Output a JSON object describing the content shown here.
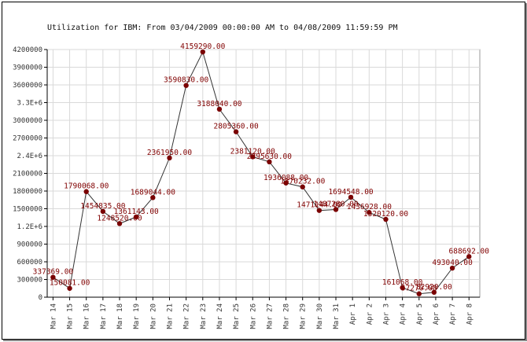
{
  "chart_data": {
    "type": "line",
    "title": "Utilization for IBM:  From 03/04/2009 00:00:00 AM to 04/08/2009 11:59:59 PM",
    "xlabel": "",
    "ylabel": "",
    "ylim": [
      0,
      4200000
    ],
    "grid": true,
    "legend": "none",
    "y_ticks": [
      {
        "value": 0,
        "label": "0"
      },
      {
        "value": 300000,
        "label": "300000"
      },
      {
        "value": 600000,
        "label": "600000"
      },
      {
        "value": 900000,
        "label": "900000"
      },
      {
        "value": 1200000,
        "label": "1.2E+6"
      },
      {
        "value": 1500000,
        "label": "1500000"
      },
      {
        "value": 1800000,
        "label": "1800000"
      },
      {
        "value": 2100000,
        "label": "2100000"
      },
      {
        "value": 2400000,
        "label": "2.4E+6"
      },
      {
        "value": 2700000,
        "label": "2700000"
      },
      {
        "value": 3000000,
        "label": "3000000"
      },
      {
        "value": 3300000,
        "label": "3.3E+6"
      },
      {
        "value": 3600000,
        "label": "3600000"
      },
      {
        "value": 3900000,
        "label": "3900000"
      },
      {
        "value": 4200000,
        "label": "4200000"
      }
    ],
    "categories": [
      "Mar 14",
      "Mar 15",
      "Mar 16",
      "Mar 17",
      "Mar 18",
      "Mar 19",
      "Mar 20",
      "Mar 21",
      "Mar 22",
      "Mar 23",
      "Mar 24",
      "Mar 25",
      "Mar 26",
      "Mar 27",
      "Mar 28",
      "Mar 29",
      "Mar 30",
      "Mar 31",
      "Apr 1",
      "Apr 2",
      "Apr 3",
      "Apr 4",
      "Apr 5",
      "Apr 6",
      "Apr 7",
      "Apr 8"
    ],
    "points": [
      {
        "x": 0.0,
        "y": 337369,
        "label": "337369.00"
      },
      {
        "x": 1.0,
        "y": 150081,
        "label": "150081.00"
      },
      {
        "x": 2.0,
        "y": 1790068,
        "label": "1790068.00"
      },
      {
        "x": 3.0,
        "y": 1454835,
        "label": "1454835.00"
      },
      {
        "x": 4.0,
        "y": 1248520,
        "label": "1248520.00"
      },
      {
        "x": 5.0,
        "y": 1361143,
        "label": "1361143.00"
      },
      {
        "x": 6.0,
        "y": 1689044,
        "label": "1689044.00"
      },
      {
        "x": 7.0,
        "y": 2361950,
        "label": "2361950.00"
      },
      {
        "x": 8.0,
        "y": 3590830,
        "label": "3590830.00"
      },
      {
        "x": 9.0,
        "y": 4159290,
        "label": "4159290.00"
      },
      {
        "x": 10.0,
        "y": 3188040,
        "label": "3188040.00"
      },
      {
        "x": 11.0,
        "y": 2805360,
        "label": "2805360.00"
      },
      {
        "x": 12.0,
        "y": 2381120,
        "label": "2381120.00"
      },
      {
        "x": 13.0,
        "y": 2295630,
        "label": "2295630.00"
      },
      {
        "x": 14.0,
        "y": 1936088,
        "label": "1936088.00"
      },
      {
        "x": 15.0,
        "y": 1870232,
        "label": "1870232.00"
      },
      {
        "x": 16.0,
        "y": 1471144,
        "label": "1471144.00"
      },
      {
        "x": 17.0,
        "y": 1487280,
        "label": "1487280.00"
      },
      {
        "x": 17.9,
        "y": 1694548,
        "label": "1694548.00"
      },
      {
        "x": 19.0,
        "y": 1436928,
        "label": "1436928.00"
      },
      {
        "x": 20.0,
        "y": 1320120,
        "label": "1320120.00"
      },
      {
        "x": 21.0,
        "y": 161068,
        "label": "161068.00"
      },
      {
        "x": 22.0,
        "y": 57270,
        "label": "57270.00"
      },
      {
        "x": 22.9,
        "y": 82920,
        "label": "82920.00"
      },
      {
        "x": 24.0,
        "y": 493040,
        "label": "493040.00"
      },
      {
        "x": 25.0,
        "y": 688692,
        "label": "688692.00"
      }
    ],
    "colors": {
      "line": "#333333",
      "marker": "#7a0000",
      "label": "#800000",
      "grid": "#d9d9d9"
    }
  }
}
